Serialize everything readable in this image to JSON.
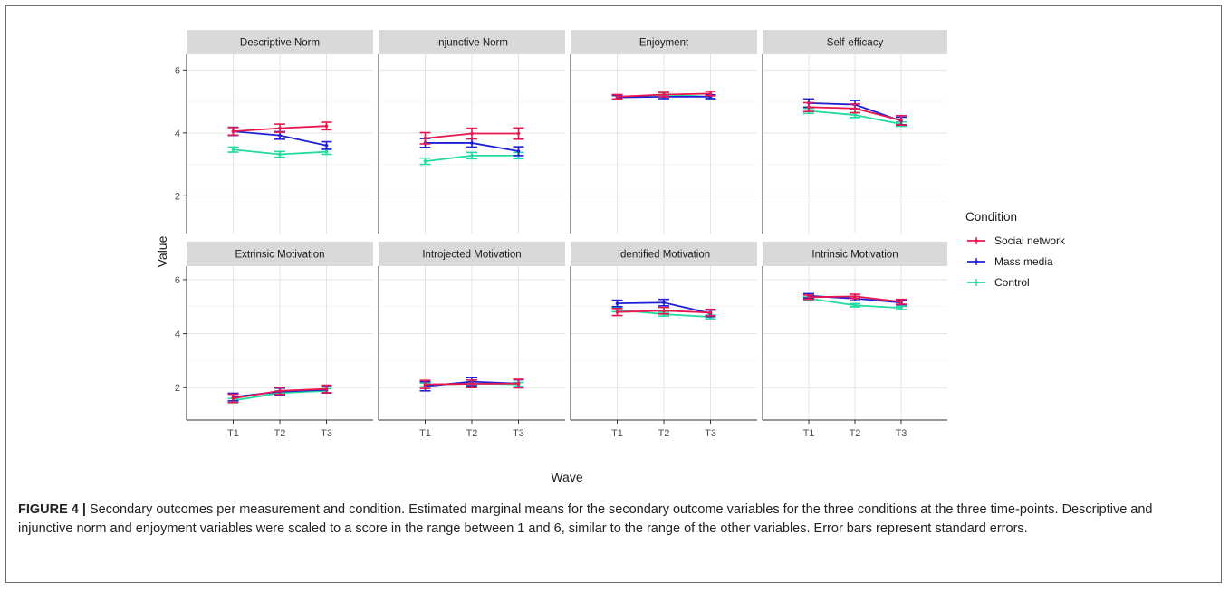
{
  "chart_data": {
    "type": "line",
    "facet_layout": "2x4",
    "x": [
      "T1",
      "T2",
      "T3"
    ],
    "xlabel": "Wave",
    "ylabel": "Value",
    "ylim": [
      0.8,
      6.5
    ],
    "yticks": [
      2,
      4,
      6
    ],
    "grid": true,
    "error_bars": "standard error",
    "legend": {
      "title": "Condition",
      "placement": "right",
      "entries": [
        "Social network",
        "Mass media",
        "Control"
      ]
    },
    "colors": {
      "Social network": "#e8174d",
      "Mass media": "#1f1fd6",
      "Control": "#22dba0"
    },
    "panels": [
      {
        "title": "Descriptive Norm",
        "series": [
          {
            "name": "Social network",
            "values": [
              4.05,
              4.15,
              4.22
            ],
            "se": [
              0.12,
              0.13,
              0.12
            ]
          },
          {
            "name": "Mass media",
            "values": [
              4.05,
              3.92,
              3.6
            ],
            "se": [
              0.13,
              0.12,
              0.12
            ]
          },
          {
            "name": "Control",
            "values": [
              3.47,
              3.32,
              3.4
            ],
            "se": [
              0.08,
              0.09,
              0.08
            ]
          }
        ]
      },
      {
        "title": "Injunctive Norm",
        "series": [
          {
            "name": "Social network",
            "values": [
              3.83,
              3.98,
              3.98
            ],
            "se": [
              0.18,
              0.17,
              0.18
            ]
          },
          {
            "name": "Mass media",
            "values": [
              3.68,
              3.68,
              3.42
            ],
            "se": [
              0.14,
              0.13,
              0.14
            ]
          },
          {
            "name": "Control",
            "values": [
              3.1,
              3.28,
              3.28
            ],
            "se": [
              0.1,
              0.1,
              0.1
            ]
          }
        ]
      },
      {
        "title": "Enjoyment",
        "series": [
          {
            "name": "Social network",
            "values": [
              5.15,
              5.22,
              5.25
            ],
            "se": [
              0.07,
              0.07,
              0.07
            ]
          },
          {
            "name": "Mass media",
            "values": [
              5.13,
              5.15,
              5.15
            ],
            "se": [
              0.06,
              0.06,
              0.06
            ]
          },
          {
            "name": "Control",
            "values": [
              5.13,
              5.22,
              5.15
            ],
            "se": [
              0.06,
              0.06,
              0.06
            ]
          }
        ]
      },
      {
        "title": "Self-efficacy",
        "series": [
          {
            "name": "Social network",
            "values": [
              4.82,
              4.78,
              4.4
            ],
            "se": [
              0.14,
              0.14,
              0.15
            ]
          },
          {
            "name": "Mass media",
            "values": [
              4.95,
              4.9,
              4.38
            ],
            "se": [
              0.13,
              0.13,
              0.12
            ]
          },
          {
            "name": "Control",
            "values": [
              4.7,
              4.57,
              4.28
            ],
            "se": [
              0.08,
              0.08,
              0.07
            ]
          }
        ]
      },
      {
        "title": "Extrinsic Motivation",
        "series": [
          {
            "name": "Social network",
            "values": [
              1.6,
              1.88,
              1.95
            ],
            "se": [
              0.15,
              0.13,
              0.14
            ]
          },
          {
            "name": "Mass media",
            "values": [
              1.65,
              1.85,
              1.92
            ],
            "se": [
              0.14,
              0.13,
              0.12
            ]
          },
          {
            "name": "Control",
            "values": [
              1.52,
              1.8,
              1.88
            ],
            "se": [
              0.08,
              0.08,
              0.08
            ]
          }
        ]
      },
      {
        "title": "Introjected Motivation",
        "series": [
          {
            "name": "Social network",
            "values": [
              2.12,
              2.14,
              2.15
            ],
            "se": [
              0.15,
              0.14,
              0.16
            ]
          },
          {
            "name": "Mass media",
            "values": [
              2.05,
              2.22,
              2.15
            ],
            "se": [
              0.17,
              0.15,
              0.14
            ]
          },
          {
            "name": "Control",
            "values": [
              2.1,
              2.15,
              2.12
            ],
            "se": [
              0.07,
              0.07,
              0.07
            ]
          }
        ]
      },
      {
        "title": "Identified Motivation",
        "series": [
          {
            "name": "Social network",
            "values": [
              4.8,
              4.85,
              4.78
            ],
            "se": [
              0.13,
              0.12,
              0.12
            ]
          },
          {
            "name": "Mass media",
            "values": [
              5.12,
              5.15,
              4.75
            ],
            "se": [
              0.12,
              0.12,
              0.12
            ]
          },
          {
            "name": "Control",
            "values": [
              4.88,
              4.72,
              4.62
            ],
            "se": [
              0.07,
              0.07,
              0.07
            ]
          }
        ]
      },
      {
        "title": "Intrinsic Motivation",
        "series": [
          {
            "name": "Social network",
            "values": [
              5.35,
              5.38,
              5.18
            ],
            "se": [
              0.08,
              0.08,
              0.09
            ]
          },
          {
            "name": "Mass media",
            "values": [
              5.4,
              5.3,
              5.15
            ],
            "se": [
              0.08,
              0.08,
              0.08
            ]
          },
          {
            "name": "Control",
            "values": [
              5.3,
              5.05,
              4.95
            ],
            "se": [
              0.06,
              0.06,
              0.06
            ]
          }
        ]
      }
    ]
  },
  "caption": {
    "label": "FIGURE 4 |",
    "text": " Secondary outcomes per measurement and condition. Estimated marginal means for the secondary outcome variables for the three conditions at the three time-points. Descriptive and injunctive norm and enjoyment variables were scaled to a score in the range between 1 and 6, similar to the range of the other variables. Error bars represent standard errors."
  }
}
